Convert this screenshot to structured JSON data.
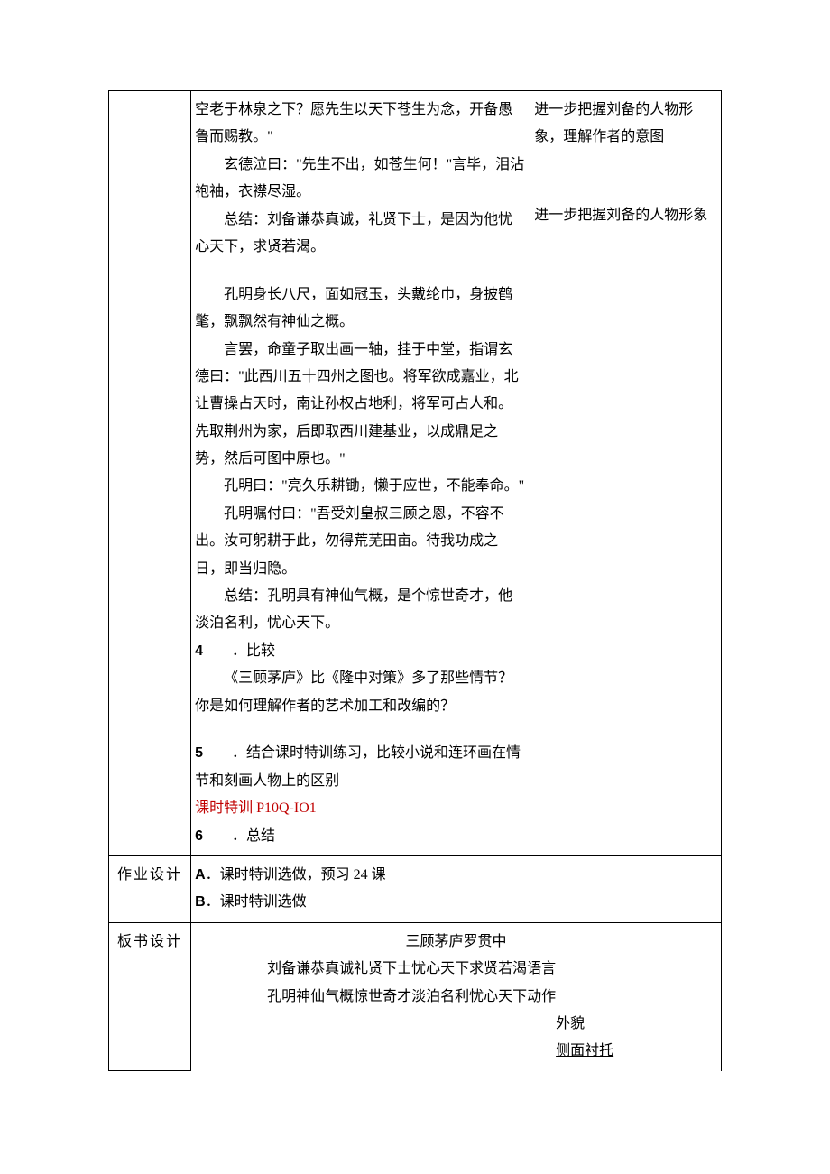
{
  "main": {
    "p1": "空老于林泉之下？愿先生以天下苍生为念，开备愚鲁而赐教。\"",
    "p2": "玄德泣曰：\"先生不出，如苍生何！\"言毕，泪沾袍袖，衣襟尽湿。",
    "p3": "总结：刘备谦恭真诚，礼贤下士，是因为他忧心天下，求贤若渴。",
    "p4": "孔明身长八尺，面如冠玉，头戴纶巾，身披鹤氅，飘飘然有神仙之概。",
    "p5": "言罢，命童子取出画一轴，挂于中堂，指谓玄德曰：\"此西川五十四州之图也。将军欲成嘉业，北让曹操占天时，南让孙权占地利，将军可占人和。先取荆州为家，后即取西川建基业，以成鼎足之势，然后可图中原也。\"",
    "p6": "孔明曰：\"亮久乐耕锄，懒于应世，不能奉命。\"",
    "p7": "孔明嘱付曰：\"吾受刘皇叔三顾之恩，不容不出。汝可躬耕于此，勿得荒芜田亩。待我功成之日，即当归隐。",
    "p8": "总结：孔明具有神仙气概，是个惊世奇才，他淡泊名利，忧心天下。",
    "item4_num": "4",
    "item4_title": "．比较",
    "item4_body": "《三顾茅庐》比《隆中对策》多了那些情节？你是如何理解作者的艺术加工和改编的？",
    "item5_num": "5",
    "item5_title": "．结合课时特训练习，比较小说和连环画在情节和刻画人物上的区别",
    "item5_red": "课时特训 P10Q-IO1",
    "item6_num": "6",
    "item6_title": "．总结"
  },
  "right": {
    "r1": "进一步把握刘备的人物形象，理解作者的意图",
    "r2": "进一步把握刘备的人物形象"
  },
  "homework": {
    "label": "作业设计",
    "lineA_prefix": "A",
    "lineA": "．课时特训选做，预习 24 课",
    "lineB_prefix": "B",
    "lineB": "．课时特训选做"
  },
  "board": {
    "label": "板书设计",
    "title": "三顾茅庐罗贯中",
    "line1": "刘备谦恭真诚礼贤下士忧心天下求贤若渴语言",
    "line2": "孔明神仙气概惊世奇才淡泊名利忧心天下动作",
    "line3": "外貌",
    "line4": "侧面衬托"
  },
  "colors": {
    "text": "#000000",
    "red": "#c00000",
    "border": "#000000",
    "background": "#ffffff"
  }
}
